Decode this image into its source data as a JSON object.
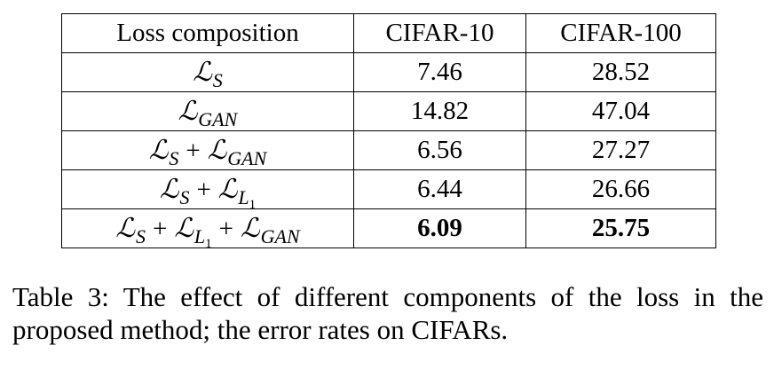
{
  "table": {
    "headers": [
      "Loss composition",
      "CIFAR-10",
      "CIFAR-100"
    ],
    "rows": [
      {
        "loss": "ℒS",
        "cifar10": "7.46",
        "cifar100": "28.52"
      },
      {
        "loss": "ℒGAN",
        "cifar10": "14.82",
        "cifar100": "47.04"
      },
      {
        "loss": "ℒS + ℒGAN",
        "cifar10": "6.56",
        "cifar100": "27.27"
      },
      {
        "loss": "ℒS + ℒL1",
        "cifar10": "6.44",
        "cifar100": "26.66"
      },
      {
        "loss": "ℒS + ℒL1 + ℒGAN",
        "cifar10": "6.09",
        "cifar100": "25.75"
      }
    ],
    "math": {
      "L": "L",
      "plus": "+",
      "S": "S",
      "GAN": "GAN",
      "one": "1"
    }
  },
  "caption": "Table 3: The effect of different components of the loss in the proposed method; the error rates on CIFARs."
}
